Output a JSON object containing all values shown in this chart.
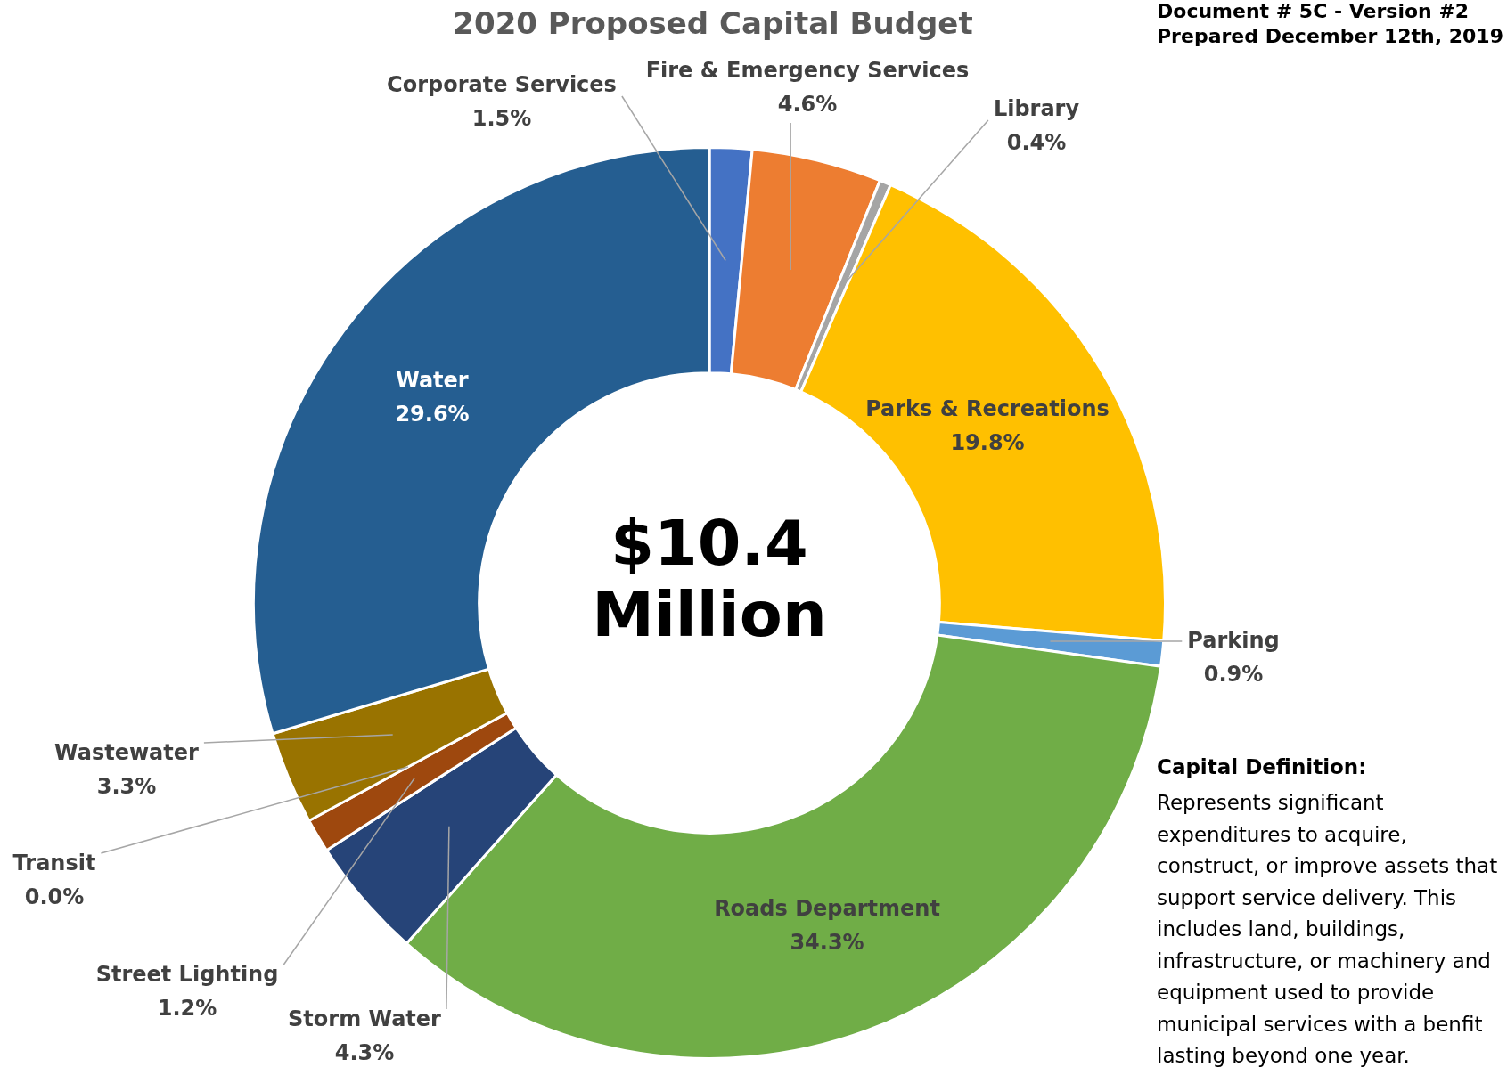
{
  "chart_data": {
    "type": "donut",
    "title": "2020 Proposed Capital Budget",
    "categories": [
      "Corporate Services",
      "Fire & Emergency Services",
      "Library",
      "Parks & Recreations",
      "Parking",
      "Roads Department",
      "Storm Water",
      "Street Lighting",
      "Transit",
      "Wastewater",
      "Water"
    ],
    "values": [
      1.5,
      4.6,
      0.4,
      19.8,
      0.9,
      34.3,
      4.3,
      1.2,
      0.0,
      3.3,
      29.6
    ],
    "value_labels": [
      "1.5%",
      "4.6%",
      "0.4%",
      "19.8%",
      "0.9%",
      "34.3%",
      "4.3%",
      "1.2%",
      "0.0%",
      "3.3%",
      "29.6%"
    ],
    "colors": [
      "#4472c4",
      "#ed7d31",
      "#a5a5a5",
      "#ffc000",
      "#5b9bd5",
      "#70ad47",
      "#264478",
      "#9e480e",
      "#636363",
      "#997300",
      "#255e91"
    ],
    "legend": false,
    "annotations": [
      "Document # 5C - Version #2",
      "Prepared December 12th, 2019",
      "$10.4 Million",
      "Capital Definition:",
      "Represents significant expenditures to acquire, construct, or improve assets that support service delivery. This includes land, buildings, infrastructure, or machinery and equipment used to provide municipal services with a benfit lasting beyond one year."
    ]
  }
}
